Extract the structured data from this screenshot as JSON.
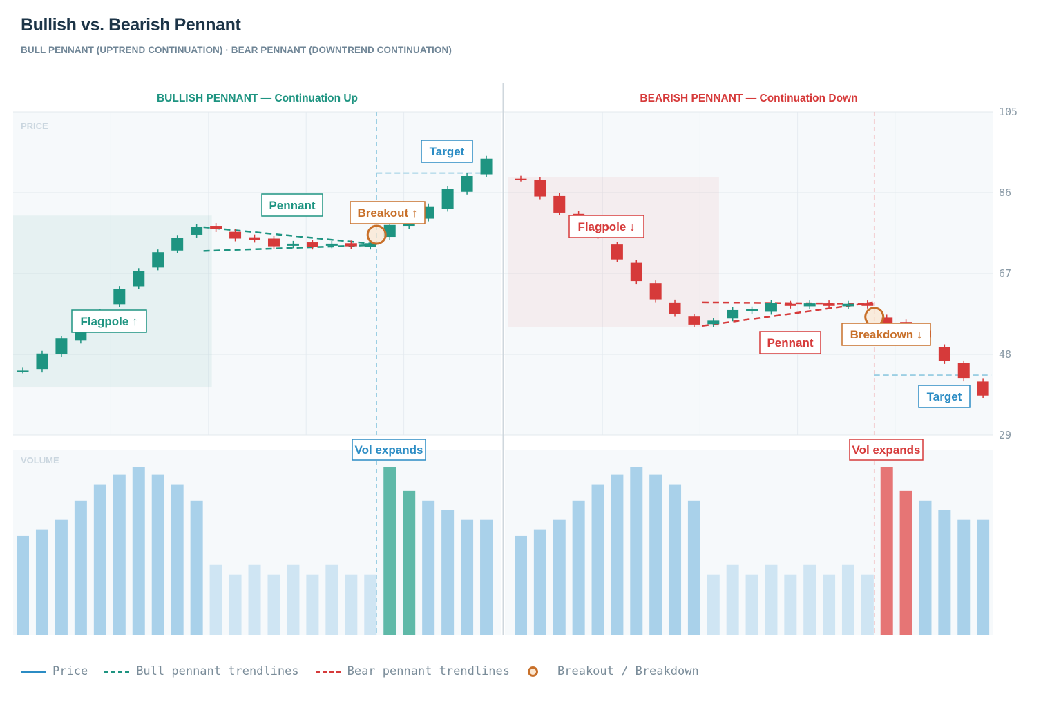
{
  "header": {
    "title": "Bullish vs. Bearish Pennant",
    "subtitle": "BULL PENNANT (UPTREND CONTINUATION) · BEAR PENNANT (DOWNTREND CONTINUATION)"
  },
  "colors": {
    "bull": "#1e9481",
    "bear": "#d63a3a",
    "breakout": "#c8702a",
    "target": "#2b8cc4",
    "volume": "#a9d1ea",
    "volume_light": "#cfe5f3"
  },
  "chart_data": {
    "type": "candlestick",
    "y_axis": {
      "ticks": [
        105,
        86,
        67,
        48,
        29
      ],
      "range": [
        29,
        105
      ]
    },
    "panel_labels": {
      "price": "PRICE",
      "volume": "VOLUME"
    },
    "panels": [
      {
        "side": "bull",
        "title": "BULLISH PENNANT — Continuation Up",
        "candles": [
          {
            "o": 44.2,
            "c": 44.2
          },
          {
            "o": 44.4,
            "c": 48.2
          },
          {
            "o": 48.0,
            "c": 51.7
          },
          {
            "o": 51.2,
            "c": 53.6
          },
          {
            "o": 55.5,
            "c": 57.9
          },
          {
            "o": 59.8,
            "c": 63.4
          },
          {
            "o": 64.0,
            "c": 67.6
          },
          {
            "o": 68.4,
            "c": 72.0
          },
          {
            "o": 72.4,
            "c": 75.4
          },
          {
            "o": 76.1,
            "c": 77.9
          },
          {
            "o": 78.2,
            "c": 77.4
          },
          {
            "o": 76.8,
            "c": 75.2
          },
          {
            "o": 75.5,
            "c": 74.9
          },
          {
            "o": 75.2,
            "c": 73.4
          },
          {
            "o": 73.6,
            "c": 74.0
          },
          {
            "o": 74.3,
            "c": 73.3
          },
          {
            "o": 73.6,
            "c": 74.0
          },
          {
            "o": 74.1,
            "c": 73.4
          },
          {
            "o": 73.3,
            "c": 74.1
          },
          {
            "o": 75.6,
            "c": 78.4
          },
          {
            "o": 78.2,
            "c": 78.7
          },
          {
            "o": 79.9,
            "c": 82.8
          },
          {
            "o": 82.2,
            "c": 86.9
          },
          {
            "o": 86.2,
            "c": 89.9
          },
          {
            "o": 90.3,
            "c": 94.0
          }
        ],
        "volume": [
          62,
          66,
          72,
          84,
          94,
          100,
          105,
          100,
          94,
          84,
          44,
          38,
          44,
          38,
          44,
          38,
          44,
          38,
          38,
          105,
          90,
          84,
          78,
          72,
          72
        ],
        "pennant_lines": [
          {
            "from": [
              0,
              77.9
            ],
            "to": [
              9,
              73.9
            ]
          },
          {
            "from": [
              0,
              72.3
            ],
            "to": [
              9,
              73.7
            ]
          }
        ],
        "breakout": {
          "candle": 19,
          "price": 76.1
        },
        "target": {
          "price": 90.6
        },
        "annotations": {
          "flagpole": "Flagpole ↑",
          "pennant": "Pennant",
          "breakout": "Breakout ↑",
          "target": "Target",
          "volume": "Vol expands"
        }
      },
      {
        "side": "bear",
        "title": "BEARISH PENNANT — Continuation Down",
        "candles": [
          {
            "o": 89.3,
            "c": 89.3
          },
          {
            "o": 89.0,
            "c": 85.1
          },
          {
            "o": 85.2,
            "c": 81.3
          },
          {
            "o": 81.0,
            "c": 79.8
          },
          {
            "o": 77.9,
            "c": 75.8
          },
          {
            "o": 73.8,
            "c": 70.3
          },
          {
            "o": 69.5,
            "c": 65.2
          },
          {
            "o": 64.7,
            "c": 60.9
          },
          {
            "o": 60.2,
            "c": 57.5
          },
          {
            "o": 56.9,
            "c": 55.0
          },
          {
            "o": 55.1,
            "c": 55.9
          },
          {
            "o": 56.4,
            "c": 58.4
          },
          {
            "o": 58.1,
            "c": 58.6
          },
          {
            "o": 58.0,
            "c": 60.1
          },
          {
            "o": 59.9,
            "c": 59.4
          },
          {
            "o": 59.3,
            "c": 60.0
          },
          {
            "o": 60.0,
            "c": 59.4
          },
          {
            "o": 59.3,
            "c": 59.9
          },
          {
            "o": 60.0,
            "c": 59.4
          },
          {
            "o": 56.7,
            "c": 55.2
          },
          {
            "o": 55.6,
            "c": 54.3
          },
          {
            "o": 53.6,
            "c": 52.0
          },
          {
            "o": 49.7,
            "c": 46.4
          },
          {
            "o": 45.9,
            "c": 42.3
          },
          {
            "o": 41.6,
            "c": 38.3
          }
        ],
        "volume": [
          62,
          66,
          72,
          84,
          94,
          100,
          105,
          100,
          94,
          84,
          38,
          44,
          38,
          44,
          38,
          44,
          38,
          44,
          38,
          105,
          90,
          84,
          78,
          72,
          72
        ],
        "pennant_lines": [
          {
            "from": [
              0,
              60.2
            ],
            "to": [
              9,
              59.9
            ]
          },
          {
            "from": [
              0,
              54.7
            ],
            "to": [
              9,
              60.2
            ]
          }
        ],
        "breakout": {
          "candle": 19,
          "price": 56.8
        },
        "target": {
          "price": 43.1
        },
        "annotations": {
          "flagpole": "Flagpole ↓",
          "pennant": "Pennant",
          "breakout": "Breakdown ↓",
          "target": "Target",
          "volume": "Vol expands"
        }
      }
    ]
  },
  "legend": {
    "price": "Price",
    "bull_lines": "Bull pennant trendlines",
    "bear_lines": "Bear pennant trendlines",
    "breakout": "Breakout / Breakdown"
  }
}
